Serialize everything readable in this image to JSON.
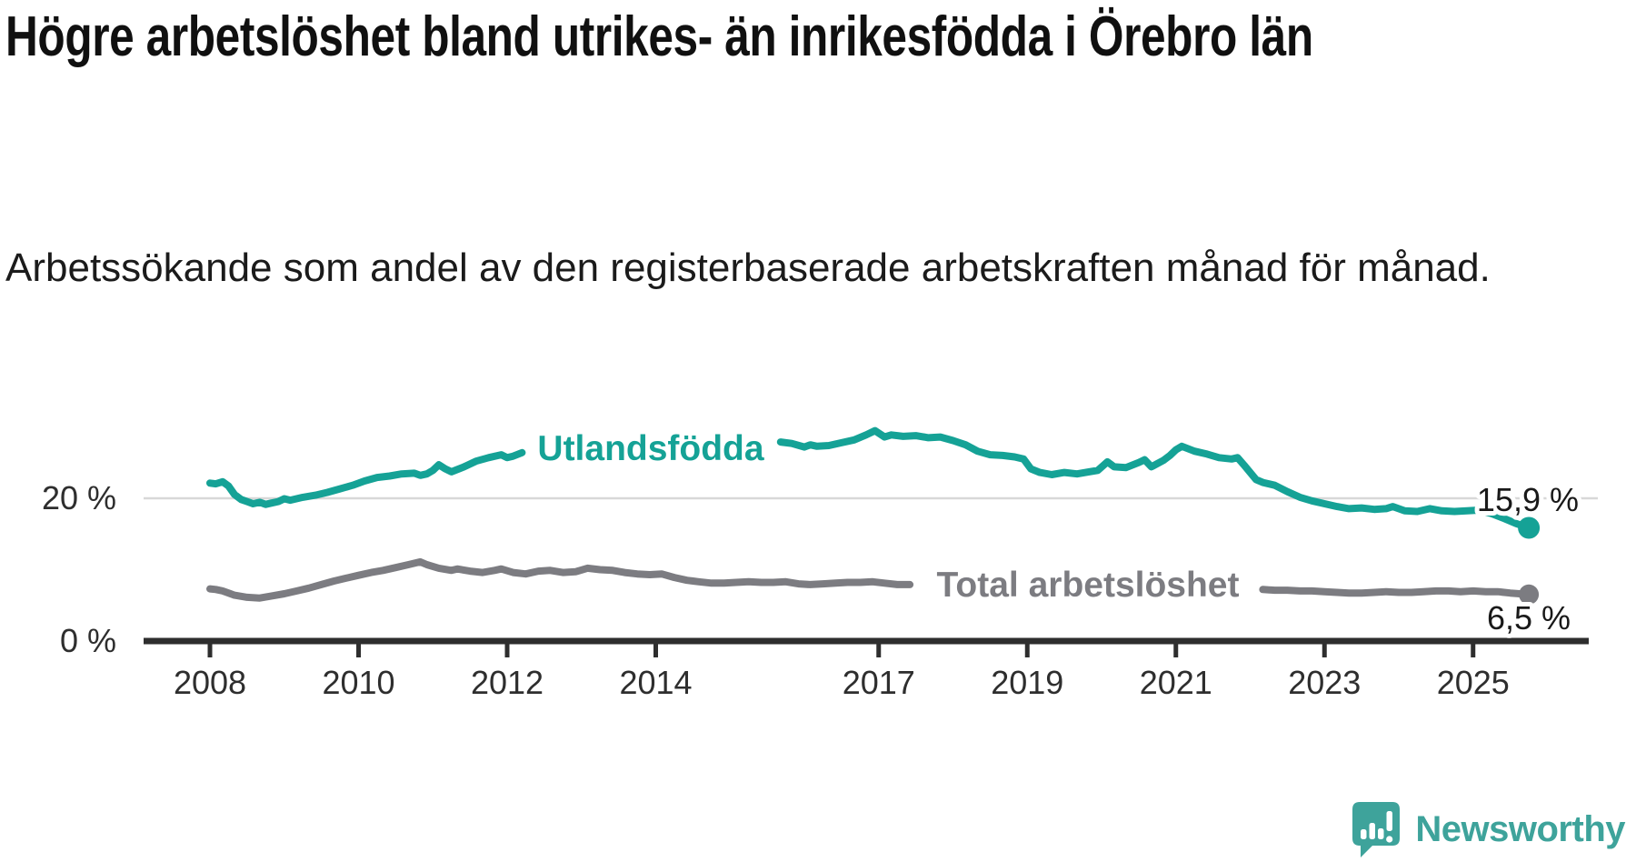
{
  "title": "Högre arbetslöshet bland utrikes- än inrikesfödda i Örebro län",
  "subtitle": "Arbetssökande som andel av den registerbaserade arbetskraften månad för månad.",
  "branding": {
    "name": "Newsworthy"
  },
  "colors": {
    "teal": "#15a296",
    "gray": "#7c7c81",
    "grid": "#d8d8d8",
    "axis": "#2e2e2e",
    "text": "#101010",
    "logo_teal": "#3ea39b"
  },
  "chart_data": {
    "type": "line",
    "title": "Högre arbetslöshet bland utrikes- än inrikesfödda i Örebro län",
    "subtitle": "Arbetssökande som andel av den registerbaserade arbetskraften månad för månad.",
    "unit": "%",
    "grid": "single line at 20 %",
    "legend_position": "inline labels on lines",
    "x_axis": {
      "range": [
        2007.6,
        2026.2
      ],
      "ticks": [
        {
          "year": 2008,
          "label": "2008"
        },
        {
          "year": 2010,
          "label": "2010"
        },
        {
          "year": 2012,
          "label": "2012"
        },
        {
          "year": 2014,
          "label": "2014"
        },
        {
          "year": 2017,
          "label": "2017"
        },
        {
          "year": 2019,
          "label": "2019"
        },
        {
          "year": 2021,
          "label": "2021"
        },
        {
          "year": 2023,
          "label": "2023"
        },
        {
          "year": 2025,
          "label": "2025"
        }
      ]
    },
    "y_axis": {
      "range": [
        0,
        31
      ],
      "ticks": [
        {
          "value": 0,
          "label": "0 %"
        },
        {
          "value": 20,
          "label": "20 %"
        }
      ]
    },
    "end_year": 2025.75,
    "series": [
      {
        "name": "Utlandsfödda",
        "color": "#15a296",
        "end_label": "15,9 %",
        "end_value": 15.9,
        "label_gap_years": [
          2012.25,
          2015.65
        ],
        "segments": [
          [
            [
              2008.0,
              22.2
            ],
            [
              2008.08,
              22.1
            ],
            [
              2008.17,
              22.4
            ],
            [
              2008.25,
              21.8
            ],
            [
              2008.33,
              20.6
            ],
            [
              2008.42,
              19.9
            ],
            [
              2008.5,
              19.6
            ],
            [
              2008.58,
              19.3
            ],
            [
              2008.67,
              19.5
            ],
            [
              2008.75,
              19.2
            ],
            [
              2008.83,
              19.4
            ],
            [
              2008.92,
              19.6
            ],
            [
              2009.0,
              20.0
            ],
            [
              2009.08,
              19.8
            ],
            [
              2009.25,
              20.2
            ],
            [
              2009.42,
              20.5
            ],
            [
              2009.58,
              20.9
            ],
            [
              2009.75,
              21.4
            ],
            [
              2009.92,
              21.9
            ],
            [
              2010.08,
              22.5
            ],
            [
              2010.25,
              23.0
            ],
            [
              2010.42,
              23.2
            ],
            [
              2010.58,
              23.5
            ],
            [
              2010.75,
              23.6
            ],
            [
              2010.83,
              23.3
            ],
            [
              2010.92,
              23.5
            ],
            [
              2011.0,
              24.0
            ],
            [
              2011.08,
              24.8
            ],
            [
              2011.17,
              24.2
            ],
            [
              2011.25,
              23.8
            ],
            [
              2011.42,
              24.5
            ],
            [
              2011.58,
              25.3
            ],
            [
              2011.75,
              25.8
            ],
            [
              2011.92,
              26.2
            ],
            [
              2012.0,
              25.8
            ],
            [
              2012.08,
              26.0
            ],
            [
              2012.2,
              26.5
            ]
          ],
          [
            [
              2015.68,
              28.0
            ],
            [
              2015.83,
              27.8
            ],
            [
              2016.0,
              27.3
            ],
            [
              2016.08,
              27.6
            ],
            [
              2016.17,
              27.4
            ],
            [
              2016.33,
              27.5
            ],
            [
              2016.5,
              27.9
            ],
            [
              2016.67,
              28.3
            ],
            [
              2016.83,
              29.0
            ],
            [
              2016.95,
              29.6
            ],
            [
              2017.08,
              28.7
            ],
            [
              2017.17,
              29.0
            ],
            [
              2017.33,
              28.8
            ],
            [
              2017.5,
              28.9
            ],
            [
              2017.67,
              28.6
            ],
            [
              2017.83,
              28.7
            ],
            [
              2018.0,
              28.2
            ],
            [
              2018.17,
              27.6
            ],
            [
              2018.33,
              26.7
            ],
            [
              2018.5,
              26.2
            ],
            [
              2018.67,
              26.1
            ],
            [
              2018.83,
              25.9
            ],
            [
              2018.95,
              25.6
            ],
            [
              2019.05,
              24.2
            ],
            [
              2019.17,
              23.7
            ],
            [
              2019.33,
              23.4
            ],
            [
              2019.5,
              23.7
            ],
            [
              2019.67,
              23.5
            ],
            [
              2019.83,
              23.8
            ],
            [
              2019.95,
              24.0
            ],
            [
              2020.08,
              25.2
            ],
            [
              2020.17,
              24.5
            ],
            [
              2020.33,
              24.4
            ],
            [
              2020.5,
              25.1
            ],
            [
              2020.58,
              25.5
            ],
            [
              2020.67,
              24.5
            ],
            [
              2020.83,
              25.4
            ],
            [
              2020.92,
              26.1
            ],
            [
              2021.0,
              26.9
            ],
            [
              2021.08,
              27.4
            ],
            [
              2021.25,
              26.7
            ],
            [
              2021.42,
              26.3
            ],
            [
              2021.58,
              25.8
            ],
            [
              2021.75,
              25.6
            ],
            [
              2021.83,
              25.8
            ],
            [
              2021.92,
              24.7
            ],
            [
              2022.08,
              22.7
            ],
            [
              2022.17,
              22.3
            ],
            [
              2022.33,
              21.9
            ],
            [
              2022.5,
              21.0
            ],
            [
              2022.67,
              20.2
            ],
            [
              2022.83,
              19.7
            ],
            [
              2023.0,
              19.3
            ],
            [
              2023.17,
              18.9
            ],
            [
              2023.33,
              18.6
            ],
            [
              2023.5,
              18.7
            ],
            [
              2023.67,
              18.5
            ],
            [
              2023.83,
              18.6
            ],
            [
              2023.92,
              18.9
            ],
            [
              2024.08,
              18.3
            ],
            [
              2024.25,
              18.2
            ],
            [
              2024.42,
              18.6
            ],
            [
              2024.58,
              18.3
            ],
            [
              2024.75,
              18.2
            ],
            [
              2024.92,
              18.3
            ],
            [
              2025.08,
              18.4
            ],
            [
              2025.25,
              17.9
            ],
            [
              2025.42,
              17.2
            ],
            [
              2025.58,
              16.5
            ],
            [
              2025.75,
              15.9
            ]
          ]
        ]
      },
      {
        "name": "Total arbetslöshet",
        "color": "#7c7c81",
        "end_label": "6,5 %",
        "end_value": 6.5,
        "label_gap_years": [
          2017.45,
          2022.15
        ],
        "segments": [
          [
            [
              2008.0,
              7.3
            ],
            [
              2008.08,
              7.2
            ],
            [
              2008.17,
              7.0
            ],
            [
              2008.33,
              6.4
            ],
            [
              2008.5,
              6.1
            ],
            [
              2008.67,
              6.0
            ],
            [
              2008.83,
              6.3
            ],
            [
              2009.0,
              6.6
            ],
            [
              2009.17,
              7.0
            ],
            [
              2009.33,
              7.4
            ],
            [
              2009.5,
              7.9
            ],
            [
              2009.67,
              8.4
            ],
            [
              2009.83,
              8.8
            ],
            [
              2010.0,
              9.2
            ],
            [
              2010.17,
              9.6
            ],
            [
              2010.33,
              9.9
            ],
            [
              2010.5,
              10.3
            ],
            [
              2010.67,
              10.7
            ],
            [
              2010.83,
              11.1
            ],
            [
              2010.92,
              10.7
            ],
            [
              2011.08,
              10.2
            ],
            [
              2011.25,
              9.9
            ],
            [
              2011.33,
              10.1
            ],
            [
              2011.5,
              9.8
            ],
            [
              2011.67,
              9.6
            ],
            [
              2011.83,
              9.9
            ],
            [
              2011.92,
              10.1
            ],
            [
              2012.08,
              9.6
            ],
            [
              2012.25,
              9.4
            ],
            [
              2012.42,
              9.8
            ],
            [
              2012.58,
              9.9
            ],
            [
              2012.75,
              9.6
            ],
            [
              2012.92,
              9.7
            ],
            [
              2013.08,
              10.2
            ],
            [
              2013.25,
              10.0
            ],
            [
              2013.42,
              9.9
            ],
            [
              2013.58,
              9.6
            ],
            [
              2013.75,
              9.4
            ],
            [
              2013.92,
              9.3
            ],
            [
              2014.08,
              9.4
            ],
            [
              2014.25,
              8.9
            ],
            [
              2014.42,
              8.5
            ],
            [
              2014.58,
              8.3
            ],
            [
              2014.75,
              8.1
            ],
            [
              2014.92,
              8.1
            ],
            [
              2015.08,
              8.2
            ],
            [
              2015.25,
              8.3
            ],
            [
              2015.42,
              8.2
            ],
            [
              2015.58,
              8.2
            ],
            [
              2015.75,
              8.3
            ],
            [
              2015.92,
              8.0
            ],
            [
              2016.08,
              7.9
            ],
            [
              2016.25,
              8.0
            ],
            [
              2016.42,
              8.1
            ],
            [
              2016.58,
              8.2
            ],
            [
              2016.75,
              8.2
            ],
            [
              2016.92,
              8.3
            ],
            [
              2017.08,
              8.1
            ],
            [
              2017.25,
              7.9
            ],
            [
              2017.42,
              7.9
            ]
          ],
          [
            [
              2022.17,
              7.2
            ],
            [
              2022.33,
              7.1
            ],
            [
              2022.5,
              7.1
            ],
            [
              2022.67,
              7.0
            ],
            [
              2022.83,
              7.0
            ],
            [
              2023.0,
              6.9
            ],
            [
              2023.17,
              6.8
            ],
            [
              2023.33,
              6.7
            ],
            [
              2023.5,
              6.7
            ],
            [
              2023.67,
              6.8
            ],
            [
              2023.83,
              6.9
            ],
            [
              2024.0,
              6.8
            ],
            [
              2024.17,
              6.8
            ],
            [
              2024.33,
              6.9
            ],
            [
              2024.5,
              7.0
            ],
            [
              2024.67,
              7.0
            ],
            [
              2024.83,
              6.9
            ],
            [
              2025.0,
              7.0
            ],
            [
              2025.17,
              6.9
            ],
            [
              2025.33,
              6.9
            ],
            [
              2025.5,
              6.7
            ],
            [
              2025.75,
              6.5
            ]
          ]
        ]
      }
    ]
  }
}
